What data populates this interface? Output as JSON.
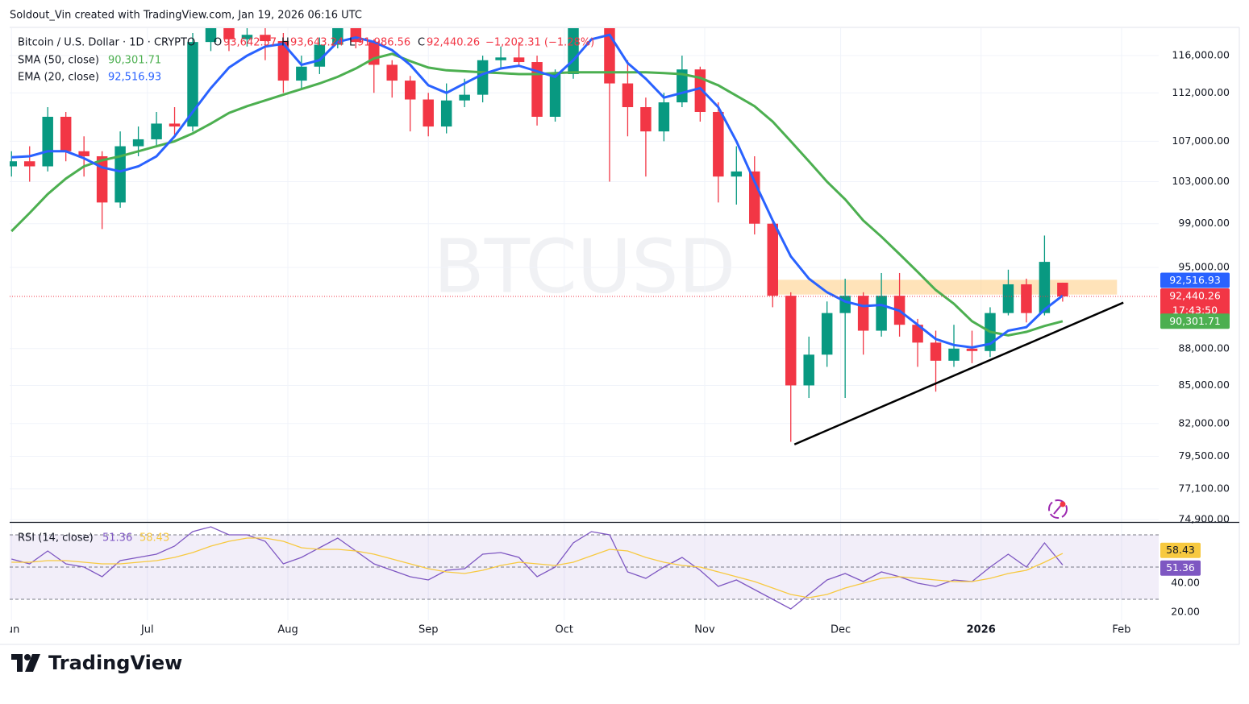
{
  "header": {
    "credit": "Soldout_Vin created with TradingView.com, Jan 19, 2026 06:16 UTC"
  },
  "footer": {
    "brand": "TradingView"
  },
  "chart_data": [
    {
      "type": "candlestick",
      "title": "Bitcoin / U.S. Dollar · 1D · CRYPTO",
      "watermark": "BTCUSD",
      "ohlc_keys": [
        "O",
        "H",
        "L",
        "C"
      ],
      "ohlc_legend": [
        "93,642.57",
        "93,643.24",
        "91,986.56",
        "92,440.26"
      ],
      "change": "−1,202.31 (−1.28%)",
      "countdown": "17:43:50",
      "log": true,
      "grid": true,
      "up_color": "#089981",
      "down_color": "#f23645",
      "xlim": [
        -0.4,
        253.2
      ],
      "xticks": [
        {
          "value": 0,
          "label": "Jun"
        },
        {
          "value": 30,
          "label": "Jul"
        },
        {
          "value": 61,
          "label": "Aug"
        },
        {
          "value": 92,
          "label": "Sep"
        },
        {
          "value": 122,
          "label": "Oct"
        },
        {
          "value": 153,
          "label": "Nov"
        },
        {
          "value": 183,
          "label": "Dec"
        },
        {
          "value": 214,
          "label": "2026"
        },
        {
          "value": 245,
          "label": "Feb"
        }
      ],
      "ylim": [
        74730,
        119040
      ],
      "yticks": [
        {
          "value": 116000,
          "label": "116,000.00"
        },
        {
          "value": 112000,
          "label": "112,000.00"
        },
        {
          "value": 107000,
          "label": "107,000.00"
        },
        {
          "value": 103000,
          "label": "103,000.00"
        },
        {
          "value": 99000,
          "label": "99,000.00"
        },
        {
          "value": 95000,
          "label": "95,000.00"
        },
        {
          "value": 88000,
          "label": "88,000.00"
        },
        {
          "value": 85000,
          "label": "85,000.00"
        },
        {
          "value": 82000,
          "label": "82,000.00"
        },
        {
          "value": 79500,
          "label": "79,500.00"
        },
        {
          "value": 77100,
          "label": "77,100.00"
        },
        {
          "value": 74900,
          "label": "74,900.00"
        }
      ],
      "x": [
        0,
        4,
        8,
        12,
        16,
        20,
        24,
        28,
        32,
        36,
        40,
        44,
        48,
        52,
        56,
        60,
        64,
        68,
        72,
        76,
        80,
        84,
        88,
        92,
        96,
        100,
        104,
        108,
        112,
        116,
        120,
        124,
        128,
        132,
        136,
        140,
        144,
        148,
        152,
        156,
        160,
        164,
        168,
        172,
        176,
        180,
        184,
        188,
        192,
        196,
        200,
        204,
        208,
        212,
        216,
        220,
        224,
        228,
        232
      ],
      "open": [
        104500,
        105000,
        104500,
        109500,
        106000,
        105500,
        101000,
        106500,
        107200,
        108800,
        108500,
        117500,
        119200,
        117800,
        118300,
        117600,
        113300,
        114800,
        117200,
        120000,
        117500,
        115000,
        113300,
        111300,
        108500,
        111200,
        111800,
        115500,
        115800,
        115300,
        109500,
        114000,
        122500,
        122000,
        113000,
        110500,
        108000,
        111000,
        114500,
        110000,
        103500,
        104000,
        99000,
        92500,
        85000,
        87500,
        91000,
        92500,
        89500,
        92500,
        90000,
        88500,
        87000,
        88000,
        87800,
        91000,
        93500,
        91000,
        93642.57
      ],
      "high": [
        106000,
        106500,
        110500,
        110000,
        107500,
        106000,
        108000,
        108500,
        110000,
        110500,
        118500,
        123000,
        120000,
        119800,
        119500,
        118500,
        116000,
        118000,
        124000,
        121000,
        117800,
        115500,
        113800,
        112000,
        113000,
        113500,
        116000,
        117000,
        117500,
        116000,
        114500,
        123000,
        126000,
        122500,
        115500,
        111500,
        112000,
        116000,
        114800,
        111000,
        106500,
        105500,
        99500,
        92800,
        89000,
        92000,
        94000,
        92800,
        94500,
        94500,
        90500,
        89500,
        90000,
        89500,
        91500,
        94800,
        94000,
        97900,
        93643.24
      ],
      "low": [
        103500,
        103000,
        104000,
        105000,
        103500,
        98500,
        100500,
        105500,
        106500,
        107500,
        108000,
        116500,
        116500,
        117000,
        115500,
        112000,
        112500,
        114000,
        116800,
        116800,
        112000,
        111500,
        108000,
        107500,
        107800,
        110500,
        111000,
        114500,
        114800,
        108600,
        109000,
        113500,
        120500,
        103000,
        107500,
        103500,
        107000,
        110500,
        109000,
        101000,
        100800,
        98000,
        91500,
        80600,
        84000,
        86500,
        84000,
        87500,
        89000,
        89000,
        86500,
        84500,
        86500,
        86800,
        87300,
        90800,
        90200,
        90800,
        91986.56
      ],
      "close": [
        105000,
        104500,
        109500,
        106000,
        105500,
        101000,
        106500,
        107200,
        108800,
        108500,
        117500,
        119200,
        117800,
        118300,
        117600,
        113300,
        114800,
        117200,
        120000,
        117500,
        115000,
        113300,
        111300,
        108500,
        111200,
        111800,
        115500,
        115800,
        115300,
        109500,
        114000,
        122500,
        122000,
        113000,
        110500,
        108000,
        111000,
        114500,
        110000,
        103500,
        104000,
        99000,
        92500,
        85000,
        87500,
        91000,
        92500,
        89500,
        92500,
        90000,
        88500,
        87000,
        88000,
        87800,
        91000,
        93500,
        91000,
        95500,
        92440.26
      ],
      "series": [
        {
          "name": "SMA (50, close)",
          "color": "#4caf50",
          "last_label": "90,301.71",
          "values": [
            98300,
            100000,
            101800,
            103300,
            104500,
            105100,
            105500,
            106000,
            106500,
            107000,
            107800,
            108800,
            109900,
            110600,
            111200,
            111800,
            112400,
            113000,
            113700,
            114600,
            115700,
            116200,
            115400,
            114700,
            114400,
            114300,
            114200,
            114100,
            114000,
            114000,
            114100,
            114200,
            114200,
            114200,
            114200,
            114200,
            114100,
            114000,
            113600,
            112800,
            111700,
            110600,
            109000,
            107000,
            105000,
            103000,
            101300,
            99300,
            97800,
            96200,
            94600,
            93000,
            91800,
            90300,
            89400,
            89100,
            89400,
            89900,
            90301.71
          ]
        },
        {
          "name": "EMA (20, close)",
          "color": "#2962ff",
          "last_label": "92,516.93",
          "values": [
            105400,
            105500,
            106000,
            106000,
            105300,
            104400,
            104000,
            104500,
            105500,
            107500,
            110000,
            112500,
            114700,
            116000,
            117000,
            117300,
            115000,
            115500,
            117500,
            118000,
            117500,
            116600,
            115000,
            112800,
            112000,
            113000,
            114000,
            114600,
            114900,
            114300,
            113700,
            115500,
            117800,
            118300,
            115200,
            113500,
            111500,
            112000,
            112500,
            110500,
            107000,
            103000,
            99300,
            96000,
            94000,
            92800,
            92000,
            91600,
            91700,
            91200,
            90000,
            88800,
            88300,
            88100,
            88400,
            89500,
            89800,
            91300,
            92516.93
          ]
        }
      ],
      "zone": {
        "x": [
          169,
          244
        ],
        "y": [
          92600,
          93900
        ],
        "color": "#ffcc80"
      },
      "trendline": {
        "x": [
          172.8,
          245.4
        ],
        "y": [
          80400,
          91900
        ],
        "color": "#000000"
      }
    },
    {
      "type": "line",
      "title": "RSI (14, close)",
      "ylim": [
        17,
        77
      ],
      "yticks": [
        {
          "value": 40,
          "label": "40.00"
        },
        {
          "value": 20,
          "label": "20.00"
        }
      ],
      "levels": [
        30,
        50,
        70
      ],
      "band_color": "#7e57c2",
      "series": [
        {
          "color": "#7e57c2",
          "last_label": "51.36",
          "values": [
            55,
            52,
            60,
            52,
            50,
            44,
            54,
            56,
            58,
            63,
            72,
            75,
            70,
            70,
            66,
            52,
            56,
            62,
            68,
            60,
            52,
            48,
            44,
            42,
            48,
            49,
            58,
            59,
            56,
            44,
            50,
            65,
            72,
            70,
            47,
            43,
            50,
            56,
            48,
            38,
            42,
            36,
            30,
            24,
            33,
            42,
            46,
            41,
            47,
            44,
            40,
            38,
            42,
            41,
            50,
            58,
            50,
            65,
            51.36
          ]
        },
        {
          "color": "#f7c940",
          "last_label": "58.43",
          "values": [
            53,
            53,
            54,
            54,
            53,
            52,
            52,
            53,
            54,
            56,
            59,
            63,
            66,
            68,
            68,
            66,
            62,
            61,
            61,
            60,
            58,
            55,
            52,
            49,
            47,
            46,
            48,
            51,
            53,
            52,
            51,
            53,
            57,
            61,
            60,
            56,
            53,
            51,
            50,
            47,
            44,
            41,
            37,
            33,
            31,
            33,
            37,
            40,
            43,
            44,
            43,
            42,
            41,
            41,
            43,
            46,
            48,
            53,
            58.43
          ]
        }
      ]
    }
  ]
}
